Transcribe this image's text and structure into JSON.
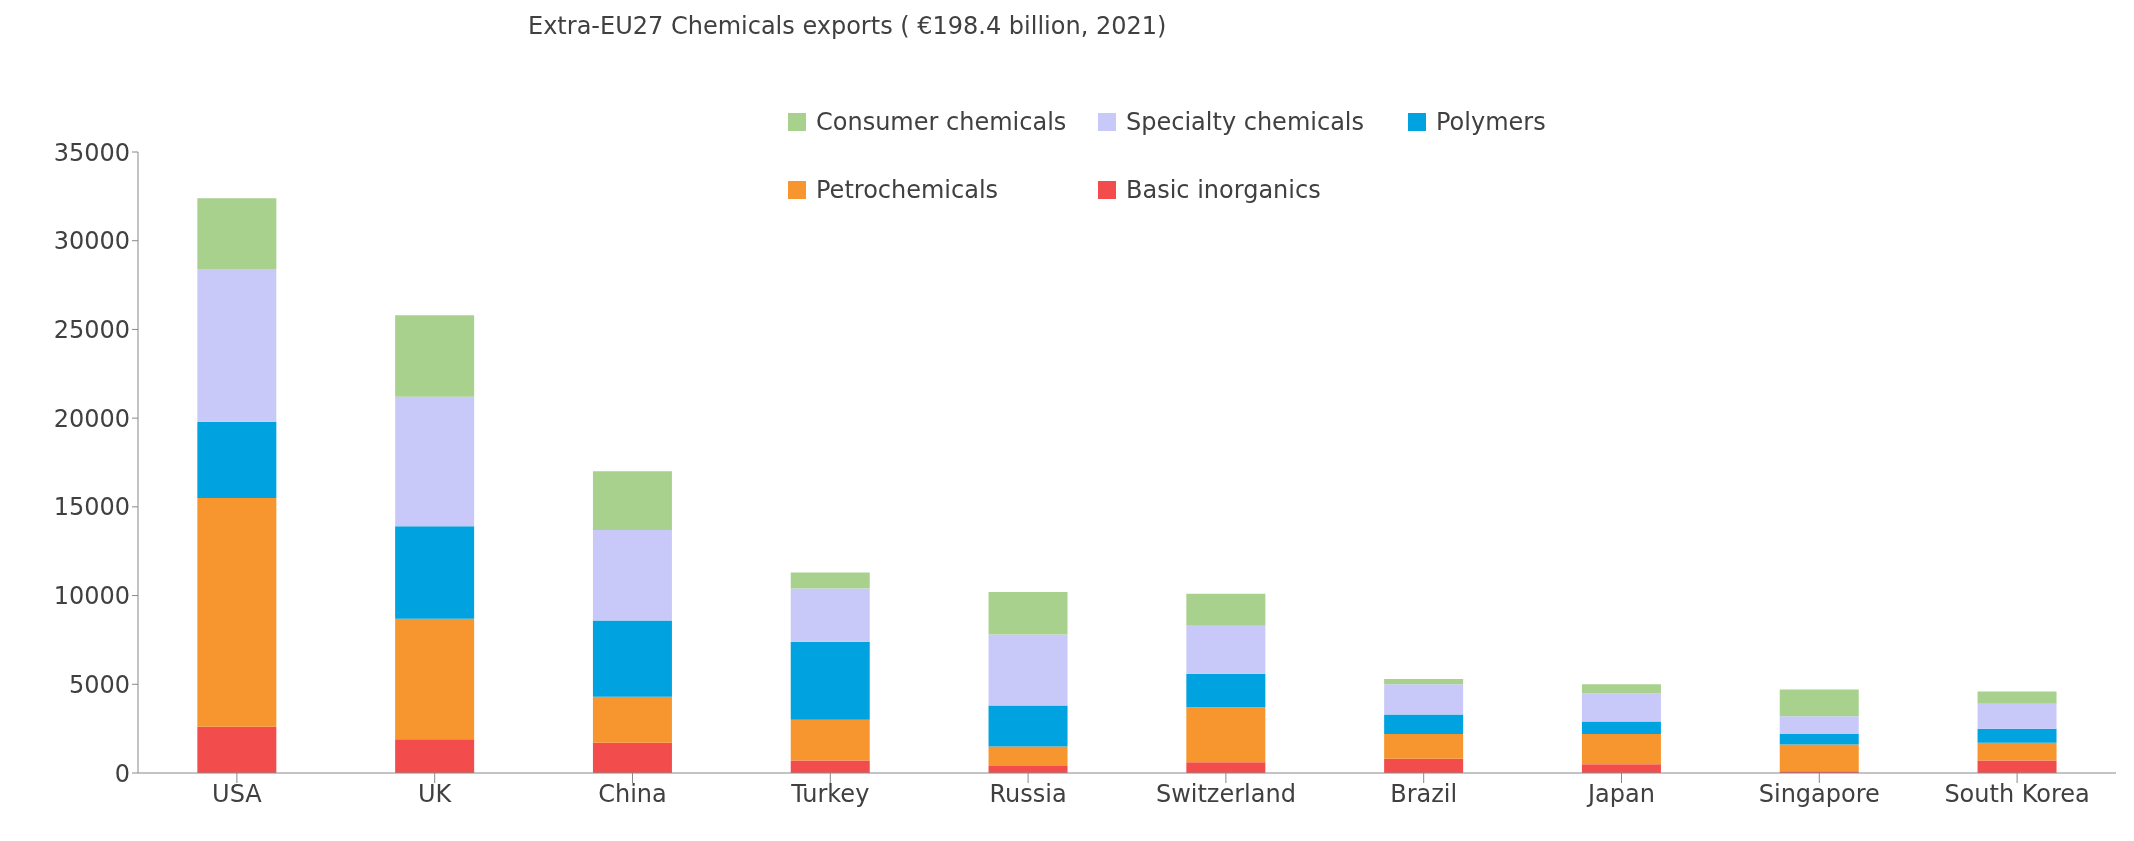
{
  "chart_data": {
    "type": "bar",
    "title": "Extra-EU27 Chemicals exports ( €198.4 billion, 2021)",
    "categories": [
      "USA",
      "UK",
      "China",
      "Turkey",
      "Russia",
      "Switzerland",
      "Brazil",
      "Japan",
      "Singapore",
      "South Korea"
    ],
    "stacked": true,
    "series": [
      {
        "name": "Basic inorganics",
        "color": "#f24c4c",
        "values": [
          2600,
          1900,
          1700,
          700,
          400,
          600,
          800,
          500,
          100,
          700
        ]
      },
      {
        "name": "Petrochemicals",
        "color": "#f7962f",
        "values": [
          12900,
          6800,
          2600,
          2300,
          1100,
          3100,
          1400,
          1700,
          1500,
          1000
        ]
      },
      {
        "name": "Polymers",
        "color": "#00a2e0",
        "values": [
          4300,
          5200,
          4300,
          4400,
          2300,
          1900,
          1100,
          700,
          600,
          800
        ]
      },
      {
        "name": "Specialty chemicals",
        "color": "#c9c9f9",
        "values": [
          8600,
          7300,
          5100,
          3000,
          4000,
          2700,
          1700,
          1600,
          1000,
          1400
        ]
      },
      {
        "name": "Consumer chemicals",
        "color": "#a9d18e",
        "values": [
          4000,
          4600,
          3300,
          900,
          2400,
          1800,
          300,
          500,
          1500,
          700
        ]
      }
    ],
    "ylim": [
      0,
      35000
    ],
    "yticks": [
      0,
      5000,
      10000,
      15000,
      20000,
      25000,
      30000,
      35000
    ],
    "grid": false,
    "legend": "top right"
  }
}
